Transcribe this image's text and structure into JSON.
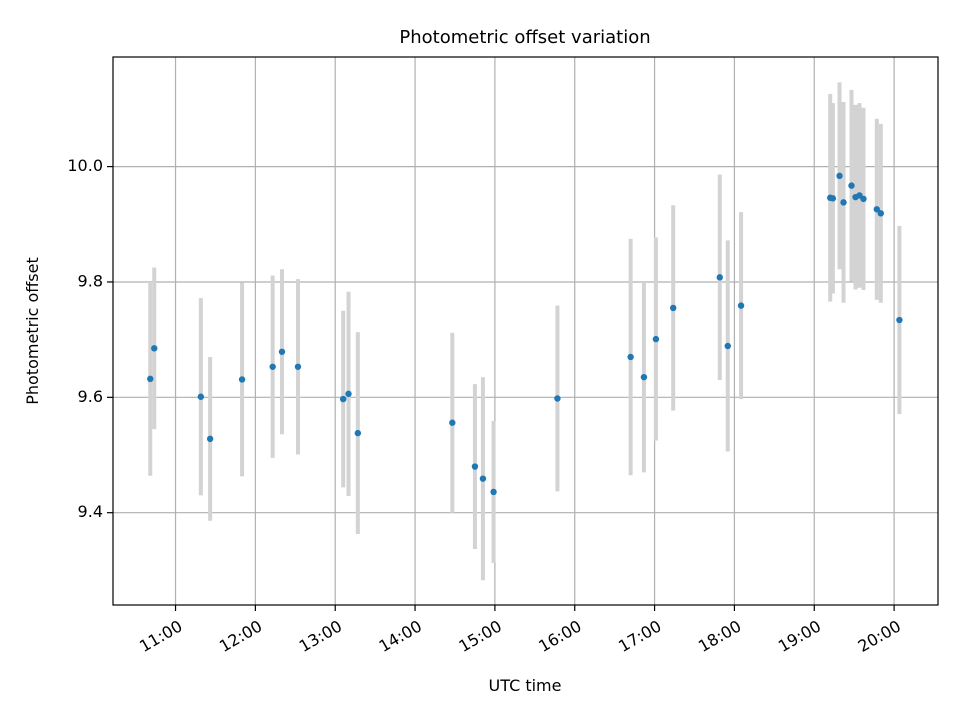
{
  "chart_data": {
    "type": "scatter",
    "title": "Photometric offset variation",
    "xlabel": "UTC time",
    "ylabel": "Photometric offset",
    "x_ticks": [
      "11:00",
      "12:00",
      "13:00",
      "14:00",
      "15:00",
      "16:00",
      "17:00",
      "18:00",
      "19:00",
      "20:00"
    ],
    "y_ticks": [
      "9.4",
      "9.6",
      "9.8",
      "10.0"
    ],
    "xlim": [
      "10:13",
      "20:33"
    ],
    "ylim": [
      9.24,
      10.19
    ],
    "grid": true,
    "colors": {
      "point": "#1f77b4",
      "errorbar": "#d3d3d3",
      "grid": "#b0b0b0"
    },
    "series": [
      {
        "x": [
          "10:41",
          "10:44",
          "11:19",
          "11:26",
          "11:50",
          "12:13",
          "12:20",
          "12:32",
          "13:06",
          "13:10",
          "13:17",
          "14:28",
          "14:45",
          "14:51",
          "14:59",
          "15:47",
          "16:42",
          "16:52",
          "17:01",
          "17:14",
          "17:49",
          "17:55",
          "18:05",
          "19:12",
          "19:14",
          "19:19",
          "19:22",
          "19:28",
          "19:31",
          "19:34",
          "19:37",
          "19:47",
          "19:50",
          "20:04"
        ],
        "y": [
          9.632,
          9.685,
          9.601,
          9.528,
          9.631,
          9.653,
          9.679,
          9.653,
          9.597,
          9.606,
          9.538,
          9.556,
          9.48,
          9.459,
          9.436,
          9.598,
          9.67,
          9.635,
          9.701,
          9.755,
          9.808,
          9.689,
          9.759,
          9.946,
          9.945,
          9.984,
          9.938,
          9.967,
          9.947,
          9.95,
          9.944,
          9.926,
          9.919,
          9.734
        ],
        "err": [
          0.168,
          0.14,
          0.171,
          0.142,
          0.168,
          0.158,
          0.143,
          0.152,
          0.153,
          0.177,
          0.175,
          0.156,
          0.143,
          0.176,
          0.123,
          0.161,
          0.205,
          0.165,
          0.176,
          0.178,
          0.178,
          0.183,
          0.162,
          0.18,
          0.165,
          0.162,
          0.174,
          0.166,
          0.16,
          0.16,
          0.158,
          0.157,
          0.155,
          0.163
        ]
      }
    ]
  }
}
